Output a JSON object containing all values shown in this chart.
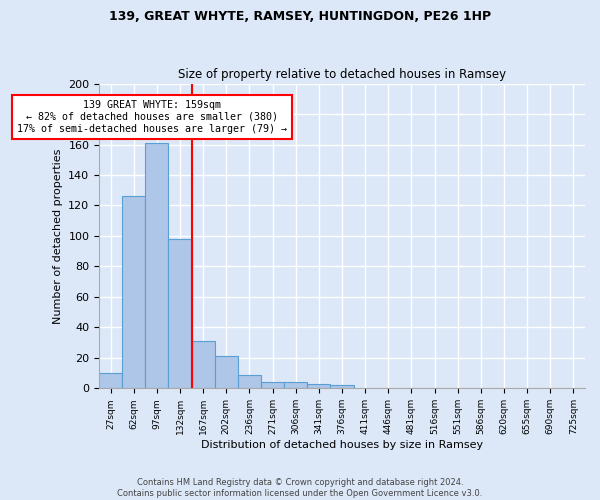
{
  "title1": "139, GREAT WHYTE, RAMSEY, HUNTINGDON, PE26 1HP",
  "title2": "Size of property relative to detached houses in Ramsey",
  "xlabel": "Distribution of detached houses by size in Ramsey",
  "ylabel": "Number of detached properties",
  "bin_labels": [
    "27sqm",
    "62sqm",
    "97sqm",
    "132sqm",
    "167sqm",
    "202sqm",
    "236sqm",
    "271sqm",
    "306sqm",
    "341sqm",
    "376sqm",
    "411sqm",
    "446sqm",
    "481sqm",
    "516sqm",
    "551sqm",
    "586sqm",
    "620sqm",
    "655sqm",
    "690sqm",
    "725sqm"
  ],
  "bar_heights": [
    10,
    126,
    161,
    98,
    31,
    21,
    9,
    4,
    4,
    3,
    2,
    0,
    0,
    0,
    0,
    0,
    0,
    0,
    0,
    0,
    0
  ],
  "bar_color": "#aec6e8",
  "bar_edge_color": "#5a9fd4",
  "annotation_text": "139 GREAT WHYTE: 159sqm\n← 82% of detached houses are smaller (380)\n17% of semi-detached houses are larger (79) →",
  "annotation_box_color": "white",
  "annotation_box_edge": "red",
  "red_line_color": "red",
  "ylim": [
    0,
    200
  ],
  "yticks": [
    0,
    20,
    40,
    60,
    80,
    100,
    120,
    140,
    160,
    180,
    200
  ],
  "footer": "Contains HM Land Registry data © Crown copyright and database right 2024.\nContains public sector information licensed under the Open Government Licence v3.0.",
  "background_color": "#dce8f8",
  "grid_color": "#ffffff"
}
